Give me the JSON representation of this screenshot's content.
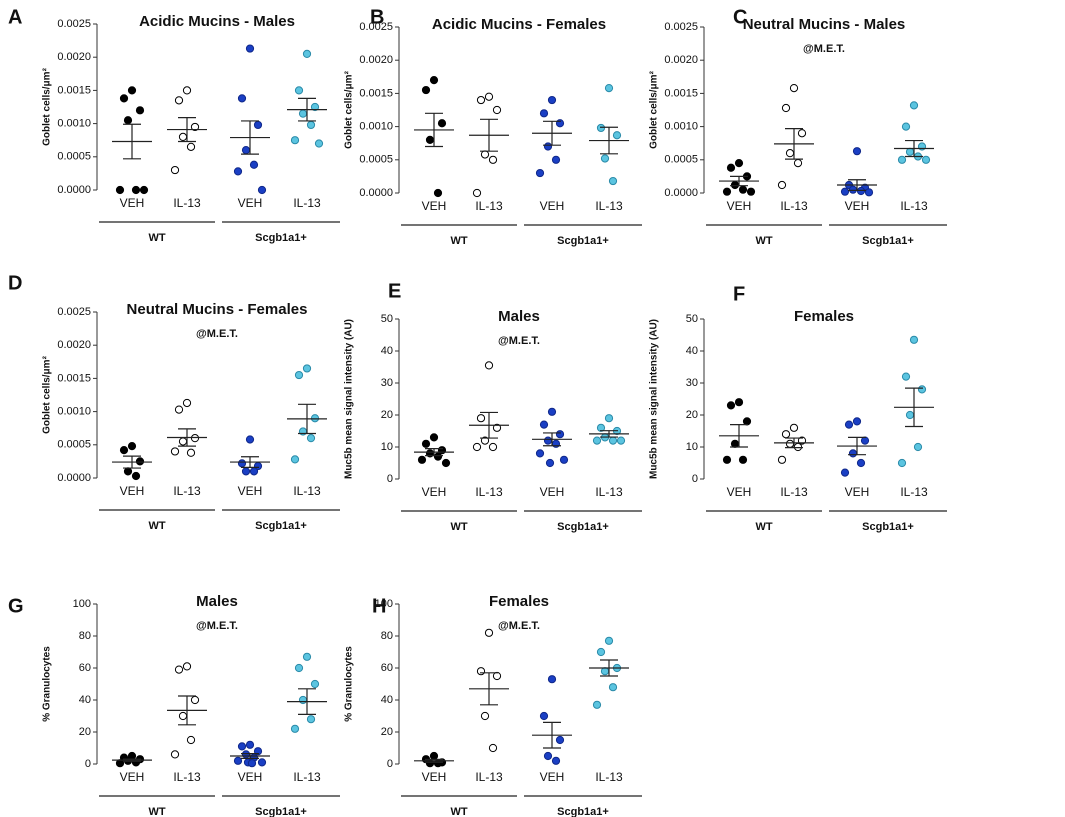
{
  "chart_data": [
    {
      "type": "dotplot",
      "panel": "A",
      "title": "Acidic Mucins - Males",
      "ylabel": "Goblet cells/μm²",
      "ylim": [
        0,
        0.0025
      ],
      "yticks": [
        {
          "value": 0,
          "label": "0.0000"
        },
        0.0005,
        {
          "value": 0.001,
          "label": "0.0010"
        },
        0.0015,
        {
          "value": 0.002,
          "label": "0.0020"
        },
        0.0025
      ],
      "groups": [
        "WT",
        "Scgb1a1+"
      ],
      "categories": [
        {
          "label": "VEH",
          "fill": "#000000",
          "stroke": "#000000",
          "values": [
            0.0015,
            0.00138,
            0.0012,
            0.00105,
            0,
            0,
            0
          ],
          "mean": 0.00073,
          "sem": 0.00026
        },
        {
          "label": "IL-13",
          "fill": "#ffffff",
          "stroke": "#000000",
          "values": [
            0.0015,
            0.00135,
            0.00095,
            0.0008,
            0.00065,
            0.0003
          ],
          "mean": 0.00091,
          "sem": 0.00018
        },
        {
          "label": "VEH",
          "fill": "#1a3fc4",
          "stroke": "#10288a",
          "values": [
            0.00213,
            0.00138,
            0.00098,
            0.0006,
            0.00038,
            0.00028,
            0
          ],
          "mean": 0.00079,
          "sem": 0.00025
        },
        {
          "label": "IL-13",
          "fill": "#5bc4e0",
          "stroke": "#2a8aa8",
          "values": [
            0.00205,
            0.0015,
            0.00125,
            0.00115,
            0.00098,
            0.00075,
            0.0007
          ],
          "mean": 0.00121,
          "sem": 0.00017
        }
      ]
    },
    {
      "type": "dotplot",
      "panel": "B",
      "title": "Acidic Mucins - Females",
      "ylabel": "Goblet cells/μm²",
      "ylim": [
        0,
        0.0025
      ],
      "yticks": [
        {
          "value": 0,
          "label": "0.0000"
        },
        0.0005,
        {
          "value": 0.001,
          "label": "0.0010"
        },
        0.0015,
        {
          "value": 0.002,
          "label": "0.0020"
        },
        0.0025
      ],
      "groups": [
        "WT",
        "Scgb1a1+"
      ],
      "categories": [
        {
          "label": "VEH",
          "fill": "#000000",
          "stroke": "#000000",
          "values": [
            0.0017,
            0.00155,
            0.00105,
            0.0008,
            0
          ],
          "mean": 0.00095,
          "sem": 0.00025
        },
        {
          "label": "IL-13",
          "fill": "#ffffff",
          "stroke": "#000000",
          "values": [
            0.00145,
            0.0014,
            0.00125,
            0.00058,
            0.0005,
            0
          ],
          "mean": 0.00087,
          "sem": 0.00024
        },
        {
          "label": "VEH",
          "fill": "#1a3fc4",
          "stroke": "#10288a",
          "values": [
            0.0014,
            0.0012,
            0.00105,
            0.0007,
            0.0005,
            0.0003
          ],
          "mean": 0.0009,
          "sem": 0.00018
        },
        {
          "label": "IL-13",
          "fill": "#5bc4e0",
          "stroke": "#2a8aa8",
          "values": [
            0.00158,
            0.00098,
            0.00087,
            0.00052,
            0.00018
          ],
          "mean": 0.00079,
          "sem": 0.0002
        }
      ]
    },
    {
      "type": "dotplot",
      "panel": "C",
      "title": "Neutral Mucins - Males",
      "subtitle": "@M.E.T.",
      "ylabel": "Goblet cells/μm²",
      "ylim": [
        0,
        0.0025
      ],
      "yticks": [
        {
          "value": 0,
          "label": "0.0000"
        },
        0.0005,
        {
          "value": 0.001,
          "label": "0.0010"
        },
        0.0015,
        {
          "value": 0.002,
          "label": "0.0020"
        },
        0.0025
      ],
      "groups": [
        "WT",
        "Scgb1a1+"
      ],
      "categories": [
        {
          "label": "VEH",
          "fill": "#000000",
          "stroke": "#000000",
          "values": [
            0.00045,
            0.00038,
            0.00025,
            0.00012,
            5e-05,
            2e-05,
            2e-05
          ],
          "mean": 0.00018,
          "sem": 7e-05
        },
        {
          "label": "IL-13",
          "fill": "#ffffff",
          "stroke": "#000000",
          "values": [
            0.00158,
            0.00128,
            0.0009,
            0.0006,
            0.00045,
            0.00012
          ],
          "mean": 0.00074,
          "sem": 0.00023
        },
        {
          "label": "VEH",
          "fill": "#1a3fc4",
          "stroke": "#10288a",
          "values": [
            0.00063,
            0.00012,
            8e-05,
            5e-05,
            3e-05,
            2e-05,
            1e-05
          ],
          "mean": 0.00012,
          "sem": 8e-05
        },
        {
          "label": "IL-13",
          "fill": "#5bc4e0",
          "stroke": "#2a8aa8",
          "values": [
            0.00132,
            0.001,
            0.0007,
            0.00062,
            0.00055,
            0.0005,
            0.0005
          ],
          "mean": 0.00067,
          "sem": 0.00012
        }
      ]
    },
    {
      "type": "dotplot",
      "panel": "D",
      "title": "Neutral Mucins - Females",
      "subtitle": "@M.E.T.",
      "ylabel": "Goblet cells/μm²",
      "ylim": [
        0,
        0.0025
      ],
      "yticks": [
        {
          "value": 0,
          "label": "0.0000"
        },
        0.0005,
        {
          "value": 0.001,
          "label": "0.0010"
        },
        0.0015,
        {
          "value": 0.002,
          "label": "0.0020"
        },
        0.0025
      ],
      "groups": [
        "WT",
        "Scgb1a1+"
      ],
      "categories": [
        {
          "label": "VEH",
          "fill": "#000000",
          "stroke": "#000000",
          "values": [
            0.00048,
            0.00042,
            0.00025,
            0.0001,
            3e-05
          ],
          "mean": 0.00024,
          "sem": 9e-05
        },
        {
          "label": "IL-13",
          "fill": "#ffffff",
          "stroke": "#000000",
          "values": [
            0.00113,
            0.00103,
            0.0006,
            0.00055,
            0.00038,
            0.0004
          ],
          "mean": 0.00061,
          "sem": 0.00013
        },
        {
          "label": "VEH",
          "fill": "#1a3fc4",
          "stroke": "#10288a",
          "values": [
            0.00058,
            0.00022,
            0.00018,
            0.0001,
            0.0001
          ],
          "mean": 0.00024,
          "sem": 8e-05
        },
        {
          "label": "IL-13",
          "fill": "#5bc4e0",
          "stroke": "#2a8aa8",
          "values": [
            0.00165,
            0.00155,
            0.0009,
            0.0007,
            0.0006,
            0.00028
          ],
          "mean": 0.00089,
          "sem": 0.00022
        }
      ]
    },
    {
      "type": "dotplot",
      "panel": "E",
      "title": "Males",
      "subtitle": "@M.E.T.",
      "ylabel": "Muc5b mean signal intensity (AU)",
      "ylim": [
        0,
        50
      ],
      "yticks": [
        0,
        10,
        20,
        30,
        40,
        50
      ],
      "groups": [
        "WT",
        "Scgb1a1+"
      ],
      "categories": [
        {
          "label": "VEH",
          "fill": "#000000",
          "stroke": "#000000",
          "values": [
            13,
            11,
            9,
            8,
            7,
            6,
            5
          ],
          "mean": 8.4,
          "sem": 1.1
        },
        {
          "label": "IL-13",
          "fill": "#ffffff",
          "stroke": "#000000",
          "values": [
            35.5,
            19,
            16,
            12,
            10,
            10
          ],
          "mean": 16.8,
          "sem": 4
        },
        {
          "label": "VEH",
          "fill": "#1a3fc4",
          "stroke": "#10288a",
          "values": [
            21,
            17,
            14,
            12,
            11,
            8,
            6,
            5
          ],
          "mean": 12.4,
          "sem": 2
        },
        {
          "label": "IL-13",
          "fill": "#5bc4e0",
          "stroke": "#2a8aa8",
          "values": [
            19,
            16,
            15,
            13,
            12,
            12,
            12
          ],
          "mean": 14.1,
          "sem": 1
        }
      ]
    },
    {
      "type": "dotplot",
      "panel": "F",
      "title": "Females",
      "ylabel": "Muc5b mean signal intensity (AU)",
      "ylim": [
        0,
        50
      ],
      "yticks": [
        0,
        10,
        20,
        30,
        40,
        50
      ],
      "groups": [
        "WT",
        "Scgb1a1+"
      ],
      "categories": [
        {
          "label": "VEH",
          "fill": "#000000",
          "stroke": "#000000",
          "values": [
            24,
            23,
            18,
            11,
            6,
            6
          ],
          "mean": 13.5,
          "sem": 3.5
        },
        {
          "label": "IL-13",
          "fill": "#ffffff",
          "stroke": "#000000",
          "values": [
            16,
            14,
            12,
            11,
            10,
            6
          ],
          "mean": 11.3,
          "sem": 1.5
        },
        {
          "label": "VEH",
          "fill": "#1a3fc4",
          "stroke": "#10288a",
          "values": [
            18,
            17,
            12,
            8,
            5,
            2
          ],
          "mean": 10.3,
          "sem": 2.7
        },
        {
          "label": "IL-13",
          "fill": "#5bc4e0",
          "stroke": "#2a8aa8",
          "values": [
            43.5,
            32,
            28,
            20,
            10,
            5
          ],
          "mean": 22.4,
          "sem": 6
        }
      ]
    },
    {
      "type": "dotplot",
      "panel": "G",
      "title": "Males",
      "subtitle": "@M.E.T.",
      "ylabel": "% Granulocytes",
      "ylim": [
        0,
        100
      ],
      "yticks": [
        0,
        20,
        40,
        60,
        80,
        100
      ],
      "groups": [
        "WT",
        "Scgb1a1+"
      ],
      "categories": [
        {
          "label": "VEH",
          "fill": "#000000",
          "stroke": "#000000",
          "values": [
            5,
            4,
            3,
            2,
            1,
            0.5
          ],
          "mean": 2.4,
          "sem": 0.7
        },
        {
          "label": "IL-13",
          "fill": "#ffffff",
          "stroke": "#000000",
          "values": [
            61,
            59,
            40,
            30,
            15,
            6
          ],
          "mean": 33.5,
          "sem": 9
        },
        {
          "label": "VEH",
          "fill": "#1a3fc4",
          "stroke": "#10288a",
          "values": [
            12,
            11,
            8,
            6,
            4,
            2,
            1,
            1,
            0.5
          ],
          "mean": 5,
          "sem": 1.5
        },
        {
          "label": "IL-13",
          "fill": "#5bc4e0",
          "stroke": "#2a8aa8",
          "values": [
            67,
            60,
            50,
            40,
            28,
            22
          ],
          "mean": 39,
          "sem": 8
        }
      ]
    },
    {
      "type": "dotplot",
      "panel": "H",
      "title": "Females",
      "subtitle": "@M.E.T.",
      "ylabel": "% Granulocytes",
      "ylim": [
        0,
        100
      ],
      "yticks": [
        0,
        20,
        40,
        60,
        80,
        100
      ],
      "groups": [
        "WT",
        "Scgb1a1+"
      ],
      "categories": [
        {
          "label": "VEH",
          "fill": "#000000",
          "stroke": "#000000",
          "values": [
            5,
            3,
            1,
            0.5,
            0.5
          ],
          "mean": 2,
          "sem": 0.9
        },
        {
          "label": "IL-13",
          "fill": "#ffffff",
          "stroke": "#000000",
          "values": [
            82,
            58,
            55,
            30,
            10
          ],
          "mean": 47,
          "sem": 10
        },
        {
          "label": "VEH",
          "fill": "#1a3fc4",
          "stroke": "#10288a",
          "values": [
            53,
            30,
            15,
            5,
            2
          ],
          "mean": 18,
          "sem": 8
        },
        {
          "label": "IL-13",
          "fill": "#5bc4e0",
          "stroke": "#2a8aa8",
          "values": [
            77,
            70,
            60,
            58,
            48,
            37
          ],
          "mean": 60,
          "sem": 5
        }
      ]
    }
  ]
}
